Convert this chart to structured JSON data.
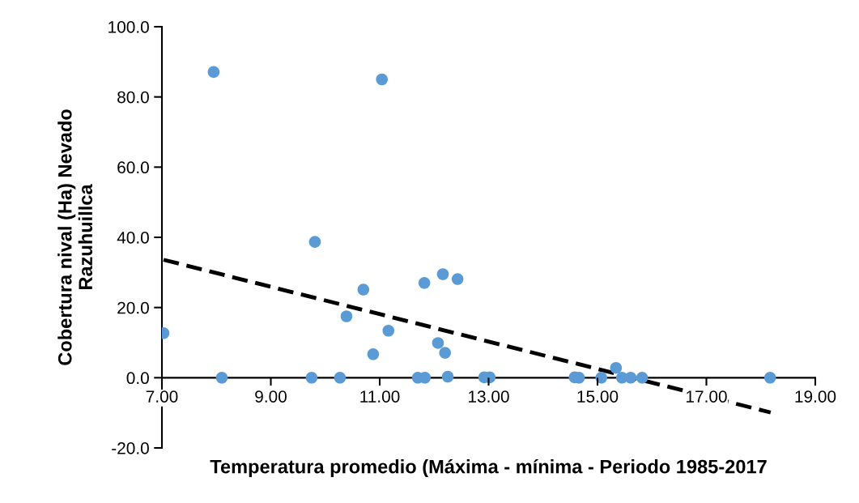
{
  "chart_data": {
    "type": "scatter",
    "xlabel": "Temperatura promedio (Máxima - mínima - Periodo 1985-2017",
    "ylabel": "Cobertura nival (Ha) Nevado\nRazuhuillca",
    "series": [
      {
        "color": "#5b9bd5",
        "marker": "circle",
        "x": [
          7.03,
          7.95,
          8.1,
          9.75,
          9.81,
          10.27,
          10.39,
          10.7,
          10.88,
          11.04,
          11.16,
          11.7,
          11.82,
          11.83,
          12.07,
          12.16,
          12.2,
          12.25,
          12.43,
          12.92,
          13.02,
          14.58,
          14.66,
          15.07,
          15.34,
          15.45,
          15.61,
          15.82,
          18.17
        ],
        "values": [
          12.7,
          87.1,
          0,
          0,
          38.7,
          0,
          17.5,
          25.1,
          6.7,
          85.0,
          13.4,
          0,
          27.0,
          0,
          9.9,
          29.5,
          7.1,
          0.3,
          28.1,
          0.1,
          0.1,
          0.1,
          0,
          0,
          2.8,
          0,
          0,
          0,
          0
        ]
      },
      {
        "type": "line",
        "color": "#000000",
        "line_style": "dashed",
        "marker": "none",
        "x": [
          7.03,
          18.18
        ],
        "values": [
          33.6,
          -9.9
        ]
      }
    ],
    "xlim": [
      7,
      19
    ],
    "ylim": [
      -20,
      100
    ],
    "xticks": [
      {
        "value": 7,
        "label": "7.00"
      },
      {
        "value": 9,
        "label": "9.00"
      },
      {
        "value": 11,
        "label": "11.00"
      },
      {
        "value": 13,
        "label": "13.00"
      },
      {
        "value": 15,
        "label": "15.00"
      },
      {
        "value": 17,
        "label": "17.00"
      },
      {
        "value": 19,
        "label": "19.00"
      }
    ],
    "yticks": [
      {
        "value": -20,
        "label": "-20.0"
      },
      {
        "value": 0,
        "label": "0.0"
      },
      {
        "value": 20,
        "label": "20.0"
      },
      {
        "value": 40,
        "label": "40.0"
      },
      {
        "value": 60,
        "label": "60.0"
      },
      {
        "value": 80,
        "label": "80.0"
      },
      {
        "value": 100,
        "label": "100.0"
      }
    ],
    "grid": false,
    "legend": false
  }
}
